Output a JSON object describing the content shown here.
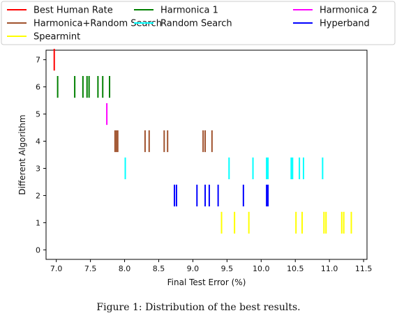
{
  "caption": "Figure 1: Distribution of the best results.",
  "chart_data": {
    "type": "strip",
    "xlabel": "Final Test Error (%)",
    "ylabel": "Different Algorithm",
    "xlim": [
      6.85,
      11.55
    ],
    "ylim": [
      -0.35,
      7.35
    ],
    "x_ticks": [
      "7.0",
      "7.5",
      "8.0",
      "8.5",
      "9.0",
      "9.5",
      "10.0",
      "10.5",
      "11.0",
      "11.5"
    ],
    "y_ticks": [
      "0",
      "1",
      "2",
      "3",
      "4",
      "5",
      "6",
      "7"
    ],
    "grid": false,
    "legend_position": "top",
    "series": [
      {
        "name": "Best Human Rate",
        "color": "#ff0000",
        "y": 7,
        "values": [
          6.97
        ]
      },
      {
        "name": "Harmonica 1",
        "color": "#008000",
        "y": 6,
        "values": [
          7.02,
          7.27,
          7.39,
          7.45,
          7.48,
          7.61,
          7.68,
          7.78
        ]
      },
      {
        "name": "Harmonica 2",
        "color": "#ff00ff",
        "y": 5,
        "values": [
          7.74
        ]
      },
      {
        "name": "Harmonica+Random Search",
        "color": "#a0522d",
        "y": 4,
        "values": [
          7.86,
          7.88,
          7.9,
          8.3,
          8.36,
          8.58,
          8.63,
          9.15,
          9.18,
          9.28
        ]
      },
      {
        "name": "Random Search",
        "color": "#00ffff",
        "y": 3,
        "values": [
          8.01,
          9.53,
          9.88,
          10.08,
          10.1,
          10.44,
          10.46,
          10.56,
          10.62,
          10.9
        ]
      },
      {
        "name": "Hyperband",
        "color": "#0000ff",
        "y": 2,
        "values": [
          8.73,
          8.76,
          9.06,
          9.18,
          9.24,
          9.37,
          9.74,
          10.08,
          10.1
        ]
      },
      {
        "name": "Spearmint",
        "color": "#ffff00",
        "y": 1,
        "values": [
          9.42,
          9.61,
          9.82,
          10.51,
          10.6,
          10.92,
          10.95,
          11.18,
          11.21,
          11.32
        ]
      }
    ]
  }
}
